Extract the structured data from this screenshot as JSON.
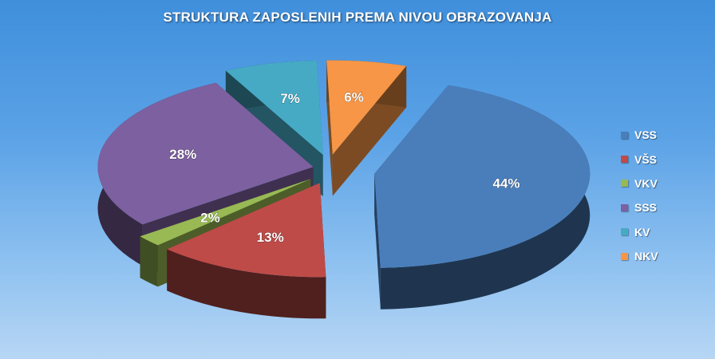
{
  "chart_data": {
    "type": "pie",
    "title": "STRUKTURA ZAPOSLENIH PREMA NIVOU OBRAZOVANJA",
    "categories": [
      "VSS",
      "VŠS",
      "VKV",
      "SSS",
      "KV",
      "NKV"
    ],
    "values": [
      44,
      13,
      2,
      28,
      7,
      6
    ],
    "value_labels": [
      "44%",
      "13%",
      "2%",
      "28%",
      "7%",
      "6%"
    ],
    "colors": [
      "#4A7EBB",
      "#BE4B48",
      "#98B954",
      "#7D60A0",
      "#46AAC5",
      "#F79646"
    ],
    "legend_position": "right",
    "exploded": true,
    "three_d": true
  }
}
